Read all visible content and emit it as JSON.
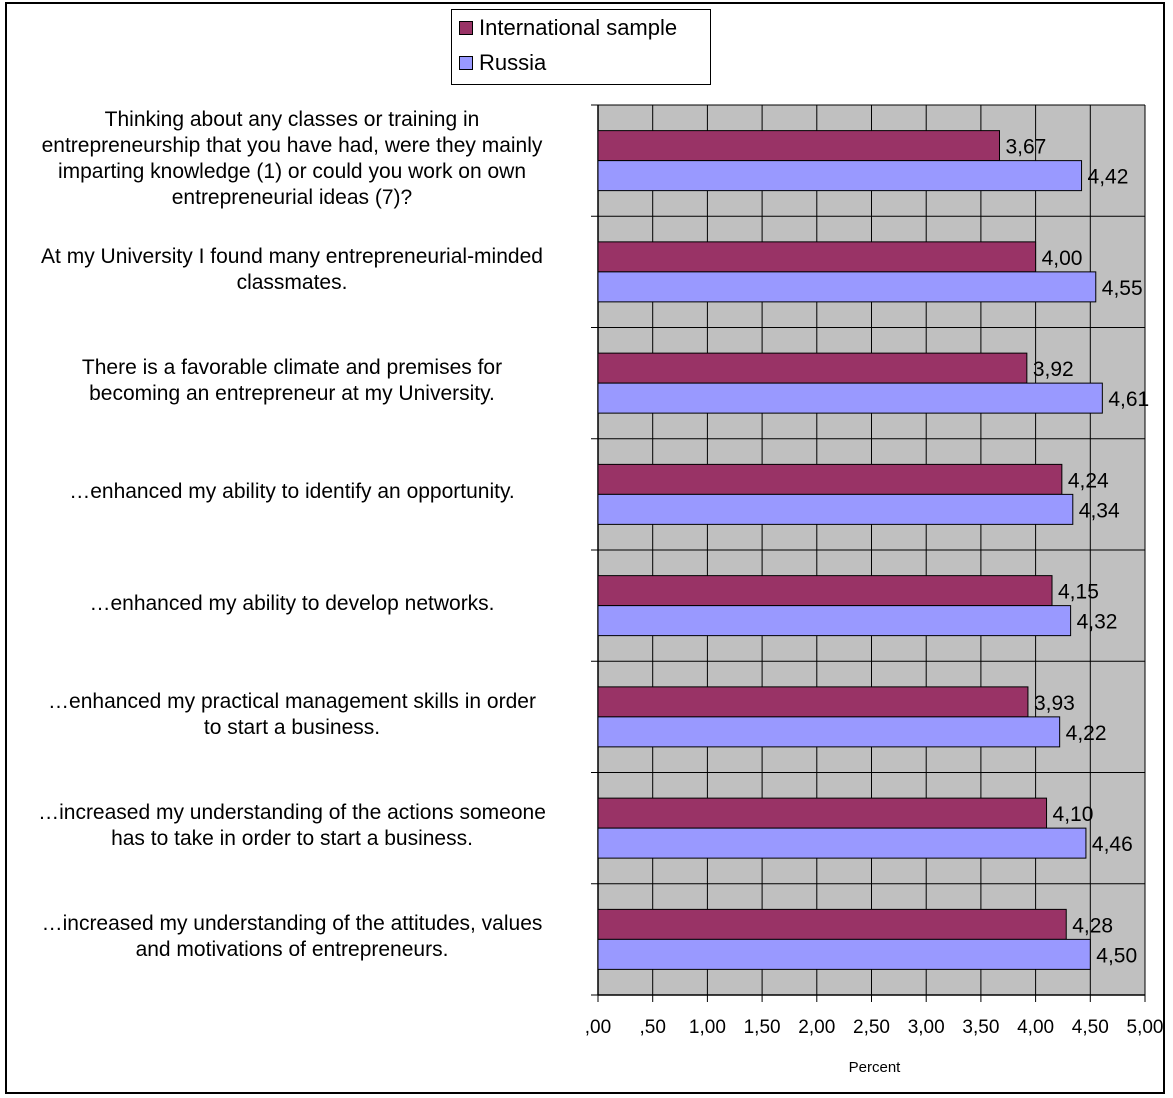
{
  "chart_data": {
    "type": "bar",
    "orientation": "horizontal",
    "categories": [
      "Thinking about any classes or training in entrepreneurship that you have had, were they mainly imparting knowledge (1) or could you work on own entrepreneurial ideas (7)?",
      "At my University I found many entrepreneurial-minded classmates.",
      "There is a favorable climate and premises for becoming an entrepreneur at my University.",
      "…enhanced my ability to identify an opportunity.",
      "…enhanced my ability to develop networks.",
      "…enhanced my practical management skills in order to start a business.",
      "…increased my understanding of the actions someone has to take in order to start a business.",
      "…increased my understanding of the attitudes, values and motivations of entrepreneurs."
    ],
    "category_lines": [
      [
        "Thinking about any classes or training in",
        "entrepreneurship that you have had, were they mainly",
        "imparting knowledge (1) or could you work on own",
        "entrepreneurial ideas (7)?"
      ],
      [
        "At my University I found many entrepreneurial-minded",
        "classmates."
      ],
      [
        "There is a favorable climate and premises for",
        "becoming an entrepreneur at my University."
      ],
      [
        "…enhanced my ability to identify an opportunity."
      ],
      [
        "…enhanced my ability to develop networks."
      ],
      [
        "…enhanced my practical management skills in order",
        "to start a business."
      ],
      [
        "…increased my understanding of the actions someone",
        "has to take in order to start a business."
      ],
      [
        "…increased my understanding of the attitudes, values",
        "and motivations of entrepreneurs."
      ]
    ],
    "series": [
      {
        "name": "International sample",
        "color": "#993366",
        "values": [
          3.67,
          4.0,
          3.92,
          4.24,
          4.15,
          3.93,
          4.1,
          4.28
        ],
        "labels": [
          "3,67",
          "4,00",
          "3,92",
          "4,24",
          "4,15",
          "3,93",
          "4,10",
          "4,28"
        ]
      },
      {
        "name": "Russia",
        "color": "#9999FF",
        "values": [
          4.42,
          4.55,
          4.61,
          4.34,
          4.32,
          4.22,
          4.46,
          4.5
        ],
        "labels": [
          "4,42",
          "4,55",
          "4,61",
          "4,34",
          "4,32",
          "4,22",
          "4,46",
          "4,50"
        ]
      }
    ],
    "xlim": [
      0,
      5
    ],
    "x_ticks": [
      ",00",
      ",50",
      "1,00",
      "1,50",
      "2,00",
      "2,50",
      "3,00",
      "3,50",
      "4,00",
      "4,50",
      "5,00"
    ],
    "xlabel": "Percent",
    "plot_background": "#C0C0C0",
    "grid": true,
    "legend_position": "top-center"
  }
}
